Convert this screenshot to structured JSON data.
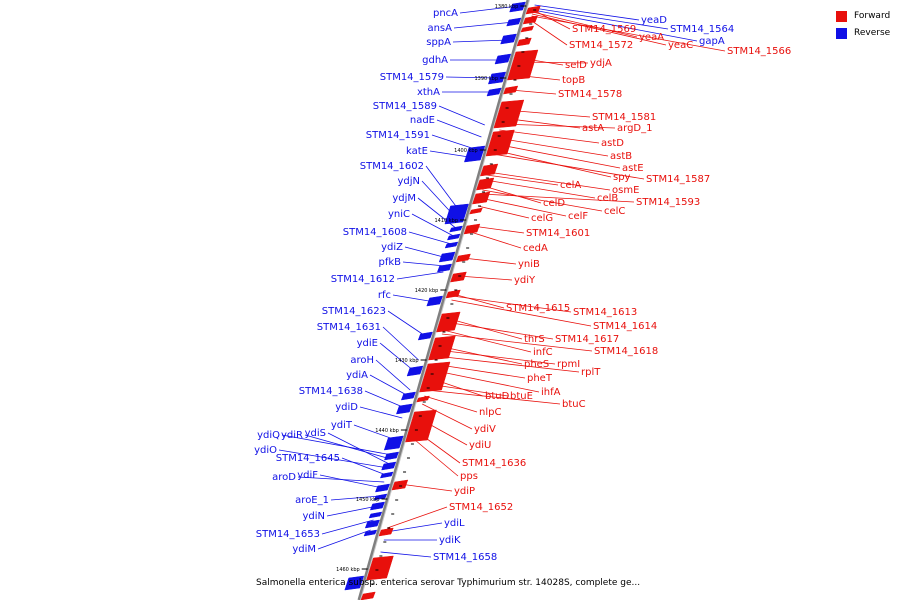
{
  "legend": {
    "forward_label": "Forward",
    "reverse_label": "Reverse"
  },
  "colors": {
    "forward": "#e8100c",
    "reverse": "#1010e6",
    "backbone": "#808080",
    "tick": "#000000"
  },
  "caption": "Salmonella enterica subsp. enterica serovar Typhimurium str. 14028S, complete ge...",
  "ticks": [
    "1380 kbp",
    "1390 kbp",
    "1400 kbp",
    "1410 kbp",
    "1420 kbp",
    "1430 kbp",
    "1440 kbp",
    "1450 kbp",
    "1460 kbp"
  ],
  "reverse_genes": [
    "pncA",
    "ansA",
    "sppA",
    "gdhA",
    "STM14_1579",
    "xthA",
    "STM14_1589",
    "nadE",
    "STM14_1591",
    "katE",
    "STM14_1602",
    "ydjN",
    "ydjM",
    "yniC",
    "STM14_1608",
    "ydiZ",
    "pfkB",
    "STM14_1612",
    "rfc",
    "STM14_1623",
    "STM14_1631",
    "ydiE",
    "aroH",
    "ydiA",
    "STM14_1638",
    "ydiD",
    "ydiT",
    "ydiQ",
    "ydiR",
    "ydiS",
    "ydiO",
    "STM14_1645",
    "aroD",
    "ydiF",
    "aroE_1",
    "ydiN",
    "STM14_1653",
    "ydiM",
    "yeaD",
    "STM14_1564",
    "gapA",
    "ydiL",
    "ydiK",
    "STM14_1658"
  ],
  "forward_genes": [
    "STM14_1569",
    "yeaA",
    "yeaC",
    "STM14_1566",
    "STM14_1572",
    "selD",
    "ydjA",
    "topB",
    "STM14_1578",
    "STM14_1581",
    "astA",
    "argD_1",
    "astD",
    "astB",
    "astE",
    "spy",
    "STM14_1587",
    "osmE",
    "celA",
    "celB",
    "celD",
    "celC",
    "STM14_1593",
    "celF",
    "celG",
    "STM14_1601",
    "cedA",
    "yniB",
    "ydiY",
    "STM14_1615",
    "STM14_1613",
    "STM14_1614",
    "thrS",
    "STM14_1617",
    "infC",
    "STM14_1618",
    "pheS",
    "rpmI",
    "rplT",
    "pheT",
    "ihfA",
    "btuD",
    "btuE",
    "btuC",
    "nlpC",
    "ydiV",
    "ydiU",
    "STM14_1636",
    "pps",
    "ydiP",
    "STM14_1652"
  ]
}
